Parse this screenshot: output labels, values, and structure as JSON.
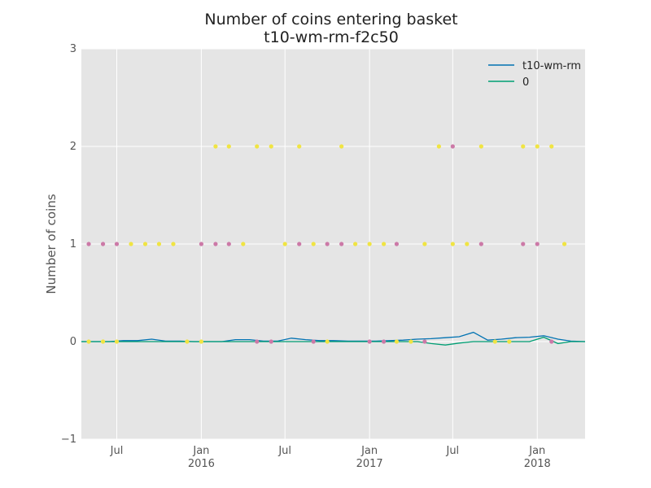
{
  "chart_data": {
    "type": "line",
    "title": "Number of coins entering basket",
    "subtitle": "t10-wm-rm-f2c50",
    "xlabel": "",
    "ylabel": "Number of coins",
    "ylim": [
      -1,
      3
    ],
    "xlim": [
      "2015-04-15",
      "2018-04-15"
    ],
    "grid": true,
    "legend_position": "top-right",
    "y_ticks": [
      "−1",
      "0",
      "1",
      "2",
      "3"
    ],
    "x_ticks": [
      {
        "date": "2015-07-01",
        "label": "Jul",
        "year": ""
      },
      {
        "date": "2016-01-01",
        "label": "Jan",
        "year": "2016"
      },
      {
        "date": "2016-07-01",
        "label": "Jul",
        "year": ""
      },
      {
        "date": "2017-01-01",
        "label": "Jan",
        "year": "2017"
      },
      {
        "date": "2017-07-01",
        "label": "Jul",
        "year": ""
      },
      {
        "date": "2018-01-01",
        "label": "Jan",
        "year": "2018"
      }
    ],
    "x": [
      "2015-04-15",
      "2015-05-15",
      "2015-06-15",
      "2015-07-15",
      "2015-08-15",
      "2015-09-15",
      "2015-10-15",
      "2015-11-15",
      "2015-12-15",
      "2016-01-15",
      "2016-02-15",
      "2016-03-15",
      "2016-04-15",
      "2016-05-15",
      "2016-06-15",
      "2016-07-15",
      "2016-08-15",
      "2016-09-15",
      "2016-10-15",
      "2016-11-15",
      "2016-12-15",
      "2017-01-15",
      "2017-02-15",
      "2017-03-15",
      "2017-04-15",
      "2017-05-15",
      "2017-06-15",
      "2017-07-15",
      "2017-08-15",
      "2017-09-15",
      "2017-10-15",
      "2017-11-15",
      "2017-12-15",
      "2018-01-15",
      "2018-02-15",
      "2018-03-15",
      "2018-04-15"
    ],
    "series": [
      {
        "name": "t10-wm-rm",
        "color": "#0072B2",
        "values": [
          0,
          0,
          0,
          0.01,
          0.01,
          0.025,
          0.005,
          0.005,
          0,
          0,
          0,
          0.02,
          0.02,
          0.005,
          0.005,
          0.035,
          0.02,
          0.01,
          0.01,
          0.005,
          0.005,
          0.005,
          0.01,
          0.015,
          0.025,
          0.03,
          0.04,
          0.05,
          0.095,
          0.015,
          0.025,
          0.04,
          0.045,
          0.06,
          0.025,
          0.005,
          0
        ]
      },
      {
        "name": "0",
        "color": "#009E73",
        "values": [
          0,
          0,
          0,
          0,
          0,
          0,
          0,
          0,
          0,
          0,
          0,
          0,
          0,
          0,
          0,
          0,
          0,
          0,
          0,
          0,
          0,
          0,
          0,
          0,
          0,
          -0.02,
          -0.035,
          -0.015,
          0,
          0,
          0,
          0,
          0,
          0.045,
          -0.02,
          0,
          0
        ]
      }
    ],
    "points": [
      {
        "x": "2015-05-01",
        "y": 1,
        "color": "pink"
      },
      {
        "x": "2015-06-01",
        "y": 1,
        "color": "pink"
      },
      {
        "x": "2015-07-01",
        "y": 1,
        "color": "pink"
      },
      {
        "x": "2015-08-01",
        "y": 1,
        "color": "yellow"
      },
      {
        "x": "2015-09-01",
        "y": 1,
        "color": "yellow"
      },
      {
        "x": "2015-10-01",
        "y": 1,
        "color": "yellow"
      },
      {
        "x": "2015-11-01",
        "y": 1,
        "color": "yellow"
      },
      {
        "x": "2016-01-01",
        "y": 1,
        "color": "pink"
      },
      {
        "x": "2016-02-01",
        "y": 1,
        "color": "pink"
      },
      {
        "x": "2016-03-01",
        "y": 1,
        "color": "pink"
      },
      {
        "x": "2016-04-01",
        "y": 1,
        "color": "yellow"
      },
      {
        "x": "2016-07-01",
        "y": 1,
        "color": "yellow"
      },
      {
        "x": "2016-08-01",
        "y": 1,
        "color": "pink"
      },
      {
        "x": "2016-09-01",
        "y": 1,
        "color": "yellow"
      },
      {
        "x": "2016-10-01",
        "y": 1,
        "color": "pink"
      },
      {
        "x": "2016-11-01",
        "y": 1,
        "color": "pink"
      },
      {
        "x": "2016-12-01",
        "y": 1,
        "color": "yellow"
      },
      {
        "x": "2017-01-01",
        "y": 1,
        "color": "yellow"
      },
      {
        "x": "2017-02-01",
        "y": 1,
        "color": "yellow"
      },
      {
        "x": "2017-03-01",
        "y": 1,
        "color": "pink"
      },
      {
        "x": "2017-05-01",
        "y": 1,
        "color": "yellow"
      },
      {
        "x": "2017-07-01",
        "y": 1,
        "color": "yellow"
      },
      {
        "x": "2017-08-01",
        "y": 1,
        "color": "yellow"
      },
      {
        "x": "2017-09-01",
        "y": 1,
        "color": "pink"
      },
      {
        "x": "2017-12-01",
        "y": 1,
        "color": "pink"
      },
      {
        "x": "2018-01-01",
        "y": 1,
        "color": "pink"
      },
      {
        "x": "2018-03-01",
        "y": 1,
        "color": "yellow"
      },
      {
        "x": "2016-02-01",
        "y": 2,
        "color": "yellow"
      },
      {
        "x": "2016-03-01",
        "y": 2,
        "color": "yellow"
      },
      {
        "x": "2016-05-01",
        "y": 2,
        "color": "yellow"
      },
      {
        "x": "2016-06-01",
        "y": 2,
        "color": "yellow"
      },
      {
        "x": "2016-08-01",
        "y": 2,
        "color": "yellow"
      },
      {
        "x": "2016-11-01",
        "y": 2,
        "color": "yellow"
      },
      {
        "x": "2017-06-01",
        "y": 2,
        "color": "yellow"
      },
      {
        "x": "2017-07-01",
        "y": 2,
        "color": "pink"
      },
      {
        "x": "2017-09-01",
        "y": 2,
        "color": "yellow"
      },
      {
        "x": "2017-12-01",
        "y": 2,
        "color": "yellow"
      },
      {
        "x": "2018-01-01",
        "y": 2,
        "color": "yellow"
      },
      {
        "x": "2018-02-01",
        "y": 2,
        "color": "yellow"
      },
      {
        "x": "2015-05-01",
        "y": 0,
        "color": "yellow"
      },
      {
        "x": "2015-06-01",
        "y": 0,
        "color": "yellow"
      },
      {
        "x": "2015-07-01",
        "y": 0,
        "color": "yellow"
      },
      {
        "x": "2015-12-01",
        "y": 0,
        "color": "yellow"
      },
      {
        "x": "2016-01-01",
        "y": 0,
        "color": "yellow"
      },
      {
        "x": "2016-05-01",
        "y": 0,
        "color": "pink"
      },
      {
        "x": "2016-06-01",
        "y": 0,
        "color": "pink"
      },
      {
        "x": "2016-09-01",
        "y": 0,
        "color": "pink"
      },
      {
        "x": "2016-10-01",
        "y": 0,
        "color": "yellow"
      },
      {
        "x": "2017-01-01",
        "y": 0,
        "color": "pink"
      },
      {
        "x": "2017-02-01",
        "y": 0,
        "color": "pink"
      },
      {
        "x": "2017-03-01",
        "y": 0,
        "color": "yellow"
      },
      {
        "x": "2017-04-01",
        "y": 0,
        "color": "yellow"
      },
      {
        "x": "2017-05-01",
        "y": 0,
        "color": "pink"
      },
      {
        "x": "2017-10-01",
        "y": 0,
        "color": "yellow"
      },
      {
        "x": "2017-11-01",
        "y": 0,
        "color": "yellow"
      },
      {
        "x": "2018-02-01",
        "y": 0,
        "color": "pink"
      }
    ],
    "colors": {
      "plot_background": "#e5e5e5",
      "grid": "#ffffff",
      "pink": "#cc79a7",
      "yellow": "#f0e442"
    }
  }
}
